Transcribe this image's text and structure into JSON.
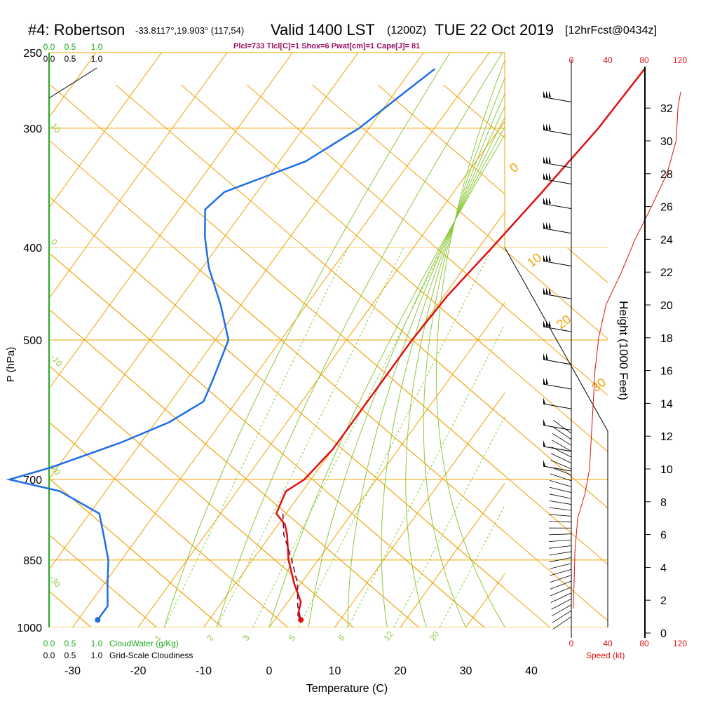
{
  "header": {
    "station": "#4: Robertson",
    "coords": "-33.8117°,19.903° (117,54)",
    "valid": "Valid 1400 LST",
    "utc": "(1200Z)",
    "date": "TUE 22 Oct 2019",
    "forecast": "[12hrFcst@0434z]"
  },
  "params": "Plcl=733 Tlcl[C]=1 Shox=6 Pwat[cm]=1 Cape[J]= 81",
  "colors": {
    "isotherm": "#f0a000",
    "dry_adiabat": "#f0a000",
    "moist_adiabat": "#8cc83c",
    "mixing_ratio": "#8cc83c",
    "temperature": "#e01010",
    "dewpoint": "#1e6ee6",
    "parcel": "#6a1050",
    "params_text": "#9a1060",
    "cloudwater": "#22aa22",
    "speed": "#e01010"
  },
  "scales": {
    "cloudwater_ticks": [
      "0.0",
      "0.5",
      "1.0"
    ],
    "cloudiness_ticks": [
      "0.0",
      "0.5",
      "1.0"
    ],
    "cloudwater_label": "CloudWater (g/Kg)",
    "cloudiness_label": "Grid-Scale Cloudiness",
    "speed_ticks": [
      "0",
      "40",
      "80",
      "120"
    ],
    "speed_label": "Speed (kt)",
    "height_label": "Height (1000 Feet)"
  },
  "chart_data": {
    "type": "line",
    "xlabel": "Temperature (C)",
    "ylabel": "P (hPa)",
    "x_ticks": [
      -30,
      -20,
      -10,
      0,
      10,
      20,
      30,
      40
    ],
    "p_ticks": [
      250,
      300,
      400,
      500,
      700,
      850,
      1000
    ],
    "p_range": [
      1000,
      250
    ],
    "x_range_at_1000": [
      -34,
      45
    ],
    "height_ticks_kft": [
      0,
      2,
      4,
      6,
      8,
      10,
      12,
      14,
      16,
      18,
      20,
      22,
      24,
      26,
      28,
      30,
      32
    ],
    "dry_adiabat_labels_c": [
      -20,
      -10,
      0,
      10,
      20,
      30
    ],
    "left_theta_labels_c": [
      10,
      0,
      -10,
      -20,
      -30
    ],
    "mixing_ratio_labels": [
      "1",
      "2",
      "3",
      "5",
      "8",
      "12",
      "20"
    ],
    "series": [
      {
        "name": "temperature",
        "points": [
          [
            260,
            -4.5
          ],
          [
            300,
            -5.0
          ],
          [
            350,
            -6.5
          ],
          [
            400,
            -8.0
          ],
          [
            450,
            -9.5
          ],
          [
            500,
            -10.0
          ],
          [
            550,
            -10.0
          ],
          [
            600,
            -10.0
          ],
          [
            650,
            -10.0
          ],
          [
            700,
            -11.0
          ],
          [
            720,
            -12.5
          ],
          [
            740,
            -12.0
          ],
          [
            760,
            -11.5
          ],
          [
            780,
            -9.0
          ],
          [
            800,
            -7.5
          ],
          [
            850,
            -4.5
          ],
          [
            900,
            -1.0
          ],
          [
            940,
            2.0
          ],
          [
            970,
            3.0
          ],
          [
            982,
            4.0
          ]
        ]
      },
      {
        "name": "dewpoint",
        "points": [
          [
            260,
            -36.5
          ],
          [
            275,
            -38.5
          ],
          [
            300,
            -41.5
          ],
          [
            325,
            -46.0
          ],
          [
            350,
            -55.0
          ],
          [
            365,
            -56.0
          ],
          [
            390,
            -53.0
          ],
          [
            420,
            -49.0
          ],
          [
            460,
            -43.0
          ],
          [
            500,
            -38.0
          ],
          [
            550,
            -36.0
          ],
          [
            580,
            -35.0
          ],
          [
            610,
            -38.0
          ],
          [
            640,
            -43.0
          ],
          [
            680,
            -51.0
          ],
          [
            700,
            -56.0
          ],
          [
            720,
            -47.0
          ],
          [
            760,
            -38.5
          ],
          [
            800,
            -35.5
          ],
          [
            850,
            -32.0
          ],
          [
            900,
            -29.5
          ],
          [
            950,
            -27.0
          ],
          [
            980,
            -27.0
          ]
        ]
      },
      {
        "name": "parcel",
        "points": [
          [
            760,
            -10.5
          ],
          [
            800,
            -8.0
          ],
          [
            850,
            -4.0
          ],
          [
            900,
            -0.5
          ],
          [
            950,
            2.0
          ],
          [
            982,
            4.0
          ]
        ]
      }
    ],
    "surface_points": [
      {
        "name": "surface-temperature",
        "p": 982,
        "t": 4.0
      },
      {
        "name": "surface-dewpoint",
        "p": 982,
        "t": -27.0
      }
    ],
    "wind_profile": [
      {
        "kft": 32.5,
        "speed": 40
      },
      {
        "kft": 30.5,
        "speed": 40
      },
      {
        "kft": 28.5,
        "speed": 35
      },
      {
        "kft": 27.5,
        "speed": 35
      },
      {
        "kft": 26.0,
        "speed": 35
      },
      {
        "kft": 24.5,
        "speed": 35
      },
      {
        "kft": 22.5,
        "speed": 30
      },
      {
        "kft": 20.5,
        "speed": 30
      },
      {
        "kft": 18.5,
        "speed": 30
      },
      {
        "kft": 16.5,
        "speed": 25
      },
      {
        "kft": 15.0,
        "speed": 20
      },
      {
        "kft": 13.8,
        "speed": 18
      },
      {
        "kft": 12.5,
        "speed": 15
      },
      {
        "kft": 11.2,
        "speed": 12
      },
      {
        "kft": 10.0,
        "speed": 10
      }
    ],
    "speed_profile": [
      {
        "kft": 1.5,
        "speed": 2
      },
      {
        "kft": 3,
        "speed": 3
      },
      {
        "kft": 5,
        "speed": 4
      },
      {
        "kft": 7,
        "speed": 7
      },
      {
        "kft": 8.5,
        "speed": 15
      },
      {
        "kft": 10,
        "speed": 20
      },
      {
        "kft": 12,
        "speed": 22
      },
      {
        "kft": 14,
        "speed": 24
      },
      {
        "kft": 16,
        "speed": 26
      },
      {
        "kft": 18,
        "speed": 30
      },
      {
        "kft": 20,
        "speed": 38
      },
      {
        "kft": 22,
        "speed": 55
      },
      {
        "kft": 24,
        "speed": 70
      },
      {
        "kft": 26,
        "speed": 88
      },
      {
        "kft": 28,
        "speed": 105
      },
      {
        "kft": 30,
        "speed": 115
      },
      {
        "kft": 32,
        "speed": 117
      },
      {
        "kft": 33,
        "speed": 120
      }
    ]
  }
}
